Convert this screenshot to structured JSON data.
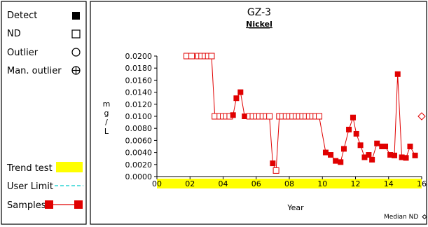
{
  "legend": {
    "detect": "Detect",
    "nd": "ND",
    "outlier": "Outlier",
    "man_outlier": "Man. outlier",
    "trend_test": "Trend test",
    "user_limit": "User Limit",
    "samples": "Samples"
  },
  "colors": {
    "series": "#e00000",
    "trend_band": "#ffff00",
    "user_limit": "#00cccc"
  },
  "chart_data": {
    "type": "line",
    "title": "GZ-3",
    "subtitle": "Nickel",
    "xlabel": "Year",
    "ylabel": "mg/L",
    "ylabel_chars": [
      "m",
      "g",
      "/",
      "L"
    ],
    "xlim": [
      2000,
      2016
    ],
    "ylim": [
      0,
      0.02
    ],
    "x_ticks": [
      "00",
      "02",
      "04",
      "06",
      "08",
      "10",
      "12",
      "14",
      "16"
    ],
    "y_ticks": [
      "0.0000",
      "0.0020",
      "0.0040",
      "0.0060",
      "0.0080",
      "0.0100",
      "0.0120",
      "0.0140",
      "0.0160",
      "0.0180",
      "0.0200"
    ],
    "median_nd_label": "Median ND",
    "trend_test_range": [
      2000,
      2016
    ],
    "series": [
      {
        "points": [
          {
            "x": 2001.8,
            "y": 0.02,
            "nd": true
          },
          {
            "x": 2002.1,
            "y": 0.02,
            "nd": true
          },
          {
            "x": 2002.5,
            "y": 0.02,
            "nd": true
          },
          {
            "x": 2002.7,
            "y": 0.02,
            "nd": true
          },
          {
            "x": 2002.9,
            "y": 0.02,
            "nd": true
          },
          {
            "x": 2003.1,
            "y": 0.02,
            "nd": true
          },
          {
            "x": 2003.3,
            "y": 0.02,
            "nd": true
          },
          {
            "x": 2003.5,
            "y": 0.01,
            "nd": true
          },
          {
            "x": 2003.8,
            "y": 0.01,
            "nd": true
          },
          {
            "x": 2004.0,
            "y": 0.01,
            "nd": true
          },
          {
            "x": 2004.2,
            "y": 0.01,
            "nd": true
          },
          {
            "x": 2004.4,
            "y": 0.01,
            "nd": true
          },
          {
            "x": 2004.6,
            "y": 0.0102,
            "nd": false
          },
          {
            "x": 2004.8,
            "y": 0.013,
            "nd": false
          },
          {
            "x": 2005.05,
            "y": 0.014,
            "nd": false
          },
          {
            "x": 2005.3,
            "y": 0.01,
            "nd": false
          },
          {
            "x": 2005.6,
            "y": 0.01,
            "nd": true
          },
          {
            "x": 2005.8,
            "y": 0.01,
            "nd": true
          },
          {
            "x": 2006.0,
            "y": 0.01,
            "nd": true
          },
          {
            "x": 2006.2,
            "y": 0.01,
            "nd": true
          },
          {
            "x": 2006.4,
            "y": 0.01,
            "nd": true
          },
          {
            "x": 2006.6,
            "y": 0.01,
            "nd": true
          },
          {
            "x": 2006.8,
            "y": 0.01,
            "nd": true
          },
          {
            "x": 2007.0,
            "y": 0.0022,
            "nd": false
          },
          {
            "x": 2007.2,
            "y": 0.001,
            "nd": true
          },
          {
            "x": 2007.4,
            "y": 0.01,
            "nd": true
          },
          {
            "x": 2007.6,
            "y": 0.01,
            "nd": true
          },
          {
            "x": 2007.8,
            "y": 0.01,
            "nd": true
          },
          {
            "x": 2008.0,
            "y": 0.01,
            "nd": true
          },
          {
            "x": 2008.2,
            "y": 0.01,
            "nd": true
          },
          {
            "x": 2008.4,
            "y": 0.01,
            "nd": true
          },
          {
            "x": 2008.6,
            "y": 0.01,
            "nd": true
          },
          {
            "x": 2008.8,
            "y": 0.01,
            "nd": true
          },
          {
            "x": 2009.0,
            "y": 0.01,
            "nd": true
          },
          {
            "x": 2009.2,
            "y": 0.01,
            "nd": true
          },
          {
            "x": 2009.4,
            "y": 0.01,
            "nd": true
          },
          {
            "x": 2009.6,
            "y": 0.01,
            "nd": true
          },
          {
            "x": 2009.8,
            "y": 0.01,
            "nd": true
          },
          {
            "x": 2010.2,
            "y": 0.004,
            "nd": false
          },
          {
            "x": 2010.5,
            "y": 0.0036,
            "nd": false
          },
          {
            "x": 2010.8,
            "y": 0.0026,
            "nd": false
          },
          {
            "x": 2011.1,
            "y": 0.0024,
            "nd": false
          },
          {
            "x": 2011.3,
            "y": 0.0046,
            "nd": false
          },
          {
            "x": 2011.6,
            "y": 0.0078,
            "nd": false
          },
          {
            "x": 2011.85,
            "y": 0.0098,
            "nd": false
          },
          {
            "x": 2012.05,
            "y": 0.0071,
            "nd": false
          },
          {
            "x": 2012.3,
            "y": 0.0052,
            "nd": false
          },
          {
            "x": 2012.55,
            "y": 0.0032,
            "nd": false
          },
          {
            "x": 2012.8,
            "y": 0.0036,
            "nd": false
          },
          {
            "x": 2013.0,
            "y": 0.0028,
            "nd": false
          },
          {
            "x": 2013.3,
            "y": 0.0055,
            "nd": false
          },
          {
            "x": 2013.6,
            "y": 0.005,
            "nd": false
          },
          {
            "x": 2013.8,
            "y": 0.005,
            "nd": false
          },
          {
            "x": 2014.1,
            "y": 0.0036,
            "nd": false
          },
          {
            "x": 2014.35,
            "y": 0.0035,
            "nd": false
          },
          {
            "x": 2014.55,
            "y": 0.017,
            "nd": false
          },
          {
            "x": 2014.8,
            "y": 0.0032,
            "nd": false
          },
          {
            "x": 2015.05,
            "y": 0.0031,
            "nd": false
          },
          {
            "x": 2015.3,
            "y": 0.005,
            "nd": false
          },
          {
            "x": 2015.6,
            "y": 0.0035,
            "nd": false
          }
        ]
      }
    ],
    "median_nd_marker": {
      "x": 2016,
      "y": 0.01
    }
  }
}
